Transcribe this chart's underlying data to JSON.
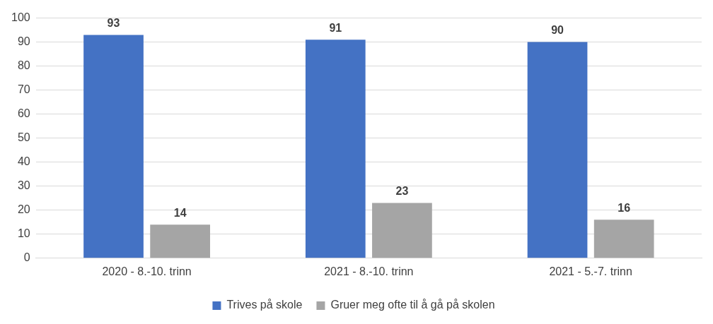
{
  "chart_data": {
    "type": "bar",
    "categories": [
      "2020 - 8.-10. trinn",
      "2021 - 8.-10. trinn",
      "2021 - 5.-7. trinn"
    ],
    "series": [
      {
        "name": "Trives på skole",
        "color": "#4472c4",
        "values": [
          93,
          91,
          90
        ]
      },
      {
        "name": "Gruer meg ofte til å gå på skolen",
        "color": "#a5a5a5",
        "values": [
          14,
          23,
          16
        ]
      }
    ],
    "ylim": [
      0,
      100
    ],
    "yticks": [
      0,
      10,
      20,
      30,
      40,
      50,
      60,
      70,
      80,
      90,
      100
    ],
    "grid": "y",
    "legend": "bottom",
    "data_labels": true
  }
}
